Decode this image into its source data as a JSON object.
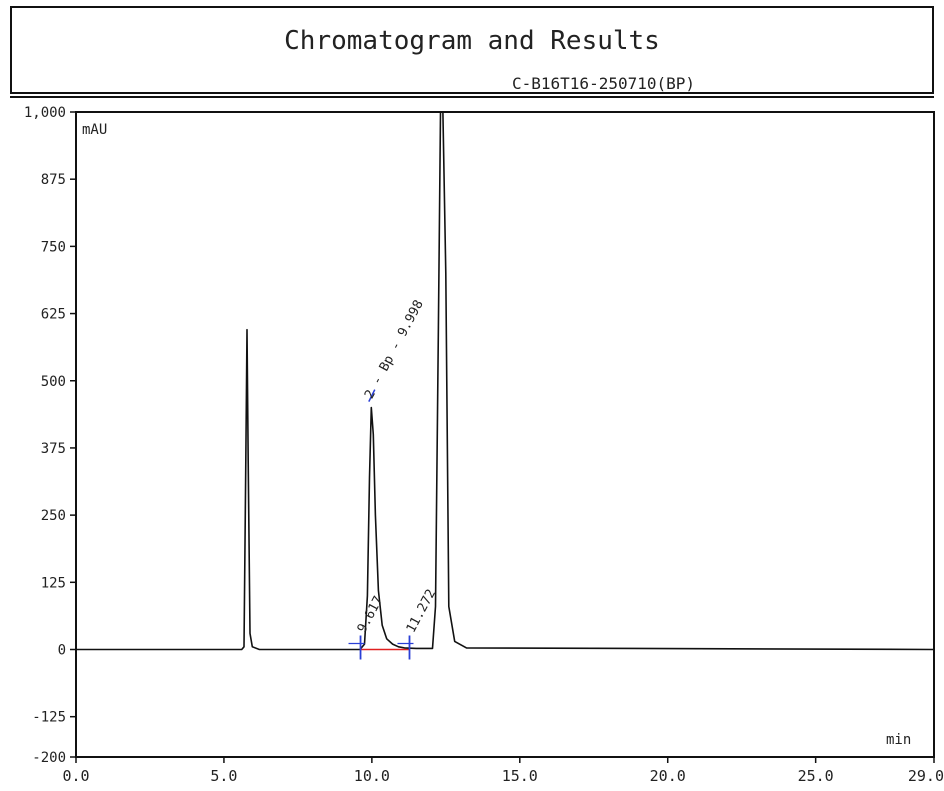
{
  "header": {
    "title": "Chromatogram and Results",
    "subtitle": "C-B16T16-250710(BP)"
  },
  "chart_data": {
    "type": "line",
    "title": "Chromatogram and Results",
    "subtitle": "C-B16T16-250710(BP)",
    "xlabel": "min",
    "ylabel": "mAU",
    "xlim": [
      0,
      29
    ],
    "ylim": [
      -200,
      1000
    ],
    "x_ticks": [
      {
        "value": 0,
        "label": "0.0"
      },
      {
        "value": 5,
        "label": "5.0"
      },
      {
        "value": 10,
        "label": "10.0"
      },
      {
        "value": 15,
        "label": "15.0"
      },
      {
        "value": 20,
        "label": "20.0"
      },
      {
        "value": 25,
        "label": "25.0"
      },
      {
        "value": 29,
        "label": "29.0"
      }
    ],
    "y_ticks": [
      {
        "value": 1000,
        "label": "1,000"
      },
      {
        "value": 875,
        "label": "875"
      },
      {
        "value": 750,
        "label": "750"
      },
      {
        "value": 625,
        "label": "625"
      },
      {
        "value": 500,
        "label": "500"
      },
      {
        "value": 375,
        "label": "375"
      },
      {
        "value": 250,
        "label": "250"
      },
      {
        "value": 125,
        "label": "125"
      },
      {
        "value": 0,
        "label": "0"
      },
      {
        "value": -125,
        "label": "-125"
      },
      {
        "value": -200,
        "label": "-200"
      }
    ],
    "series": [
      {
        "color": "#111111",
        "x": [
          0,
          5.6,
          5.68,
          5.74,
          5.78,
          5.82,
          5.88,
          5.96,
          6.2,
          9.6,
          9.75,
          9.85,
          9.92,
          9.98,
          10.05,
          10.12,
          10.22,
          10.35,
          10.5,
          10.7,
          10.9,
          11.1,
          11.5,
          12.05,
          12.15,
          12.25,
          12.32,
          12.4,
          12.5,
          12.6,
          12.8,
          13.2,
          29
        ],
        "y": [
          0,
          0,
          5,
          350,
          595,
          350,
          30,
          5,
          0,
          0,
          10,
          100,
          320,
          450,
          400,
          250,
          110,
          45,
          20,
          10,
          5,
          3,
          2,
          2,
          80,
          600,
          1000,
          1000,
          700,
          80,
          15,
          3,
          0
        ]
      }
    ],
    "peaks": [
      {
        "label": "2 - Bp - 9.998",
        "x": 9.998,
        "y": 450
      },
      {
        "label": "9.617",
        "x": 9.617,
        "y": 0
      },
      {
        "label": "11.272",
        "x": 11.272,
        "y": 0
      }
    ],
    "integration_baseline": {
      "x": [
        9.617,
        11.272
      ],
      "y": [
        0,
        0
      ],
      "color": "#e02020"
    },
    "marker_color": "#2a3fd6",
    "grid": false
  }
}
